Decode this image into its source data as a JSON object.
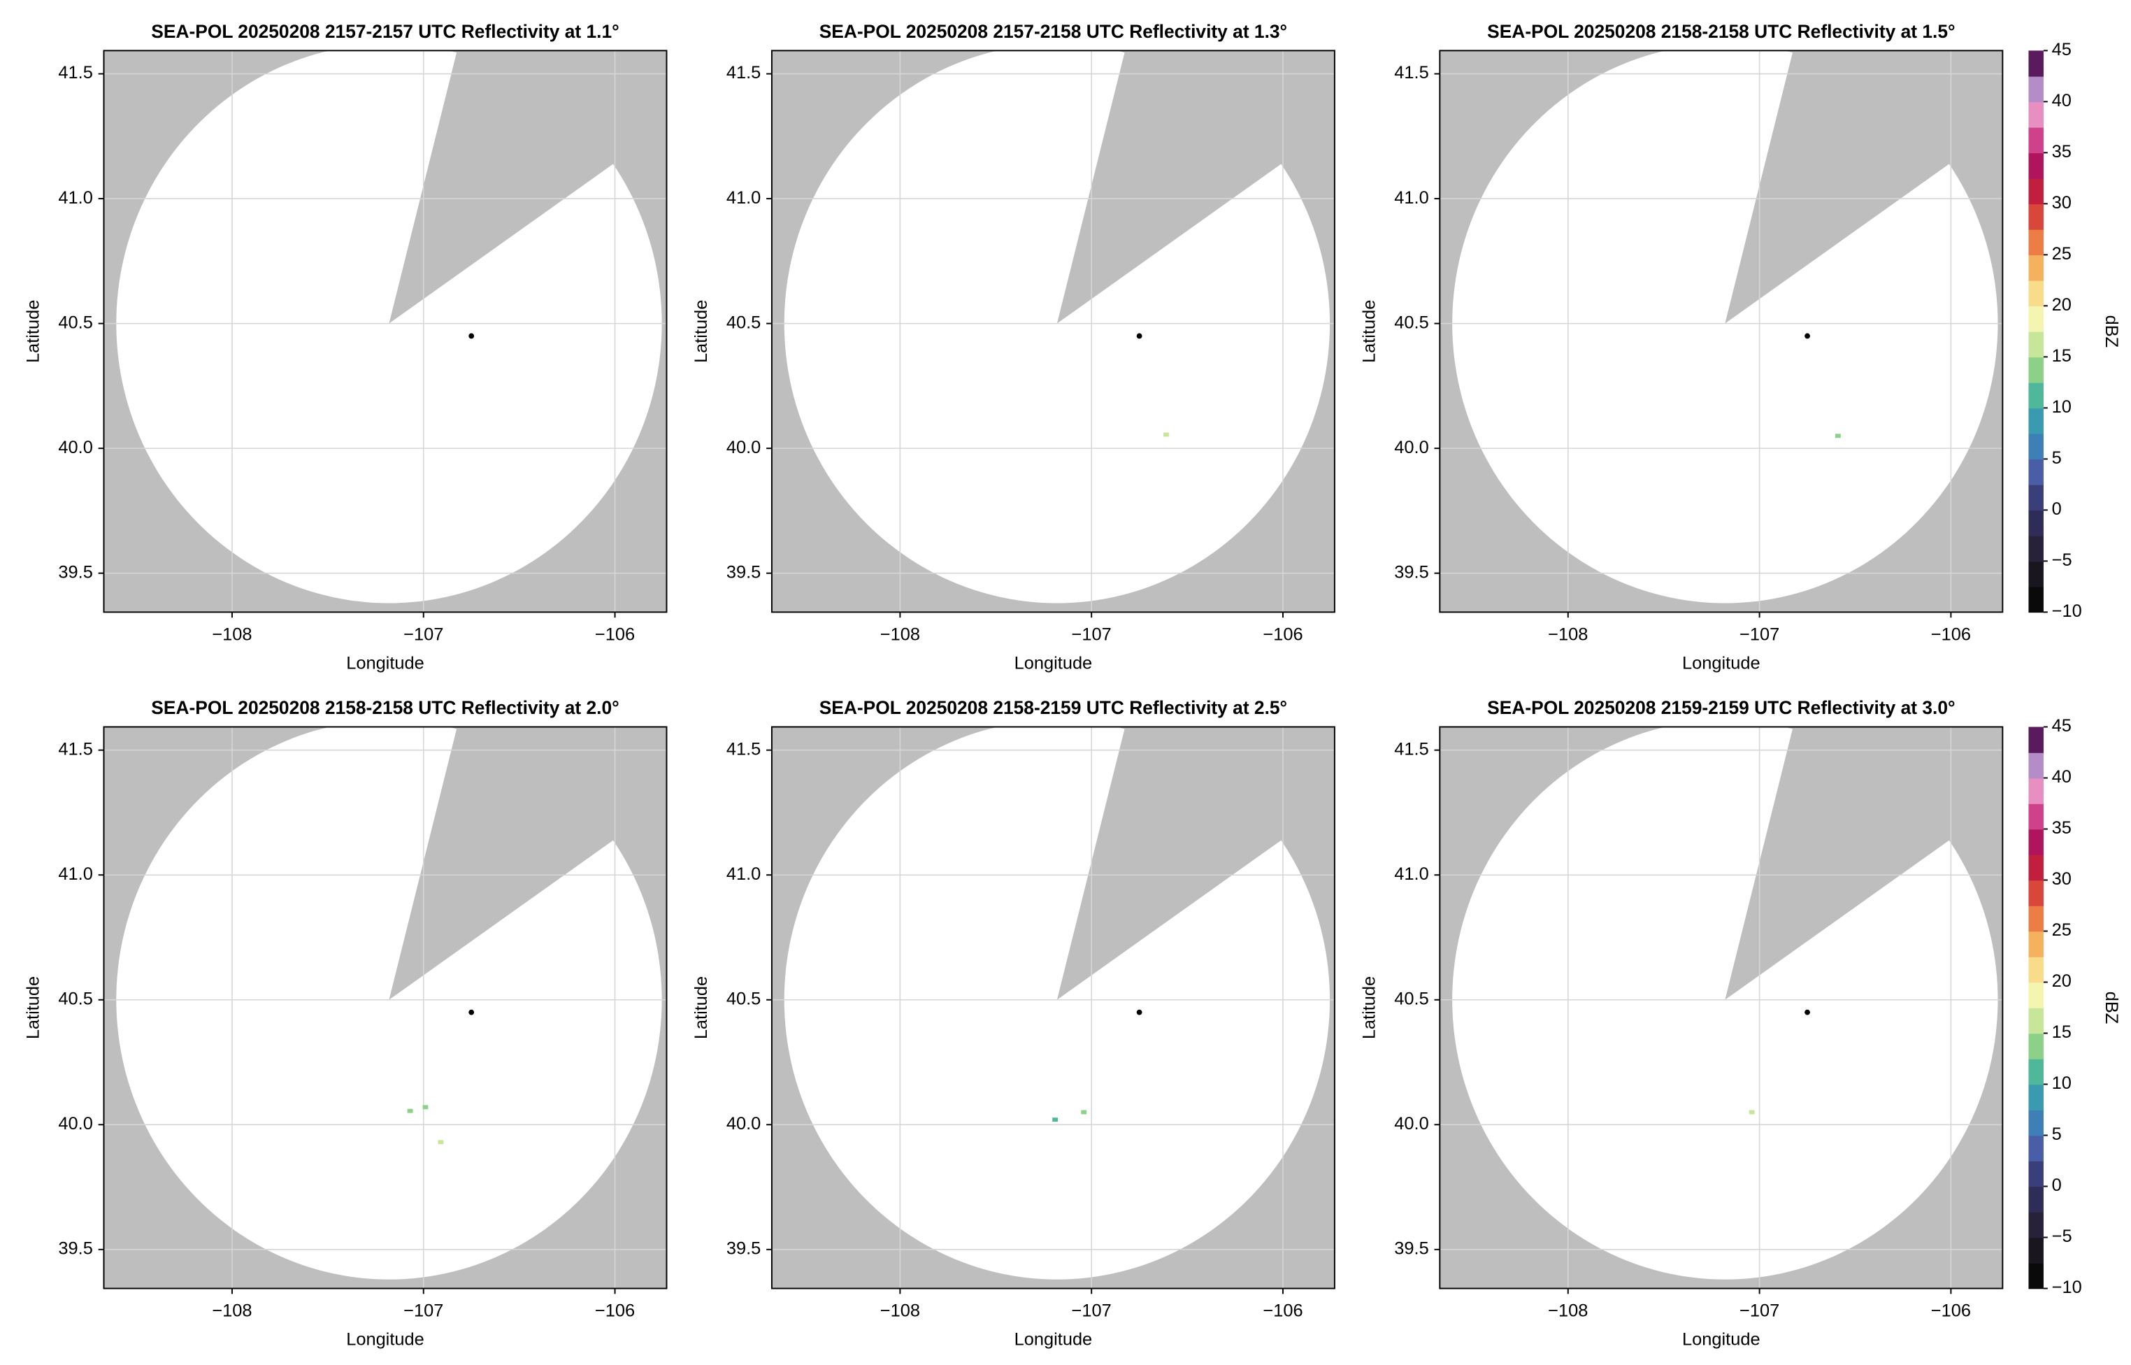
{
  "chart_data": [
    {
      "type": "radar_ppi",
      "title": "SEA-POL 20250208 2157-2157 UTC Reflectivity at 1.1°",
      "xlabel": "Longitude",
      "ylabel": "Latitude",
      "xlim": [
        -108.67,
        -105.73
      ],
      "ylim": [
        39.344,
        41.593
      ],
      "xticks": [
        {
          "value": -108,
          "label": "−108"
        },
        {
          "value": -107,
          "label": "−107"
        },
        {
          "value": -106,
          "label": "−106"
        }
      ],
      "yticks": [
        39.5,
        {
          "value": 40,
          "label": "40.0"
        },
        40.5,
        {
          "value": 41,
          "label": "41.0"
        },
        41.5
      ],
      "grid": true,
      "coverage": {
        "center": [
          -107.18,
          40.5
        ],
        "radius": [
          1.425,
          1.12
        ],
        "blocked_edges": [
          [
            -106.843,
            41.536
          ],
          [
            -106.064,
            41.109
          ]
        ],
        "color": "#bebebe"
      },
      "site": [
        -106.75,
        40.45
      ],
      "echoes": {
        "x": [],
        "y": [],
        "values": []
      },
      "colorbar": false
    },
    {
      "type": "radar_ppi",
      "title": "SEA-POL 20250208 2157-2158 UTC Reflectivity at 1.3°",
      "xlabel": "Longitude",
      "ylabel": "Latitude",
      "xlim": [
        -108.67,
        -105.73
      ],
      "ylim": [
        39.344,
        41.593
      ],
      "xticks": [
        {
          "value": -108,
          "label": "−108"
        },
        {
          "value": -107,
          "label": "−107"
        },
        {
          "value": -106,
          "label": "−106"
        }
      ],
      "yticks": [
        39.5,
        {
          "value": 40,
          "label": "40.0"
        },
        40.5,
        {
          "value": 41,
          "label": "41.0"
        },
        41.5
      ],
      "grid": true,
      "coverage": {
        "center": [
          -107.18,
          40.5
        ],
        "radius": [
          1.425,
          1.12
        ],
        "blocked_edges": [
          [
            -106.843,
            41.536
          ],
          [
            -106.064,
            41.109
          ]
        ],
        "color": "#bebebe"
      },
      "site": [
        -106.75,
        40.45
      ],
      "echoes": {
        "x": [
          -106.61
        ],
        "y": [
          40.055
        ],
        "values": [
          17
        ]
      },
      "colorbar": false
    },
    {
      "type": "radar_ppi",
      "title": "SEA-POL 20250208 2158-2158 UTC Reflectivity at 1.5°",
      "xlabel": "Longitude",
      "ylabel": "Latitude",
      "xlim": [
        -108.67,
        -105.73
      ],
      "ylim": [
        39.344,
        41.593
      ],
      "xticks": [
        {
          "value": -108,
          "label": "−108"
        },
        {
          "value": -107,
          "label": "−107"
        },
        {
          "value": -106,
          "label": "−106"
        }
      ],
      "yticks": [
        39.5,
        {
          "value": 40,
          "label": "40.0"
        },
        40.5,
        {
          "value": 41,
          "label": "41.0"
        },
        41.5
      ],
      "grid": true,
      "coverage": {
        "center": [
          -107.18,
          40.5
        ],
        "radius": [
          1.425,
          1.12
        ],
        "blocked_edges": [
          [
            -106.843,
            41.536
          ],
          [
            -106.064,
            41.109
          ]
        ],
        "color": "#bebebe"
      },
      "site": [
        -106.75,
        40.45
      ],
      "echoes": {
        "x": [
          -106.59
        ],
        "y": [
          40.05
        ],
        "values": [
          14
        ]
      },
      "colorbar": true
    },
    {
      "type": "radar_ppi",
      "title": "SEA-POL 20250208 2158-2158 UTC Reflectivity at 2.0°",
      "xlabel": "Longitude",
      "ylabel": "Latitude",
      "xlim": [
        -108.67,
        -105.73
      ],
      "ylim": [
        39.344,
        41.593
      ],
      "xticks": [
        {
          "value": -108,
          "label": "−108"
        },
        {
          "value": -107,
          "label": "−107"
        },
        {
          "value": -106,
          "label": "−106"
        }
      ],
      "yticks": [
        39.5,
        {
          "value": 40,
          "label": "40.0"
        },
        40.5,
        {
          "value": 41,
          "label": "41.0"
        },
        41.5
      ],
      "grid": true,
      "coverage": {
        "center": [
          -107.18,
          40.5
        ],
        "radius": [
          1.425,
          1.12
        ],
        "blocked_edges": [
          [
            -106.843,
            41.536
          ],
          [
            -106.064,
            41.109
          ]
        ],
        "color": "#bebebe"
      },
      "site": [
        -106.75,
        40.45
      ],
      "echoes": {
        "x": [
          -107.07,
          -106.99,
          -106.91
        ],
        "y": [
          40.055,
          40.07,
          39.93
        ],
        "values": [
          14,
          13,
          15
        ]
      },
      "colorbar": false
    },
    {
      "type": "radar_ppi",
      "title": "SEA-POL 20250208 2158-2159 UTC Reflectivity at 2.5°",
      "xlabel": "Longitude",
      "ylabel": "Latitude",
      "xlim": [
        -108.67,
        -105.73
      ],
      "ylim": [
        39.344,
        41.593
      ],
      "xticks": [
        {
          "value": -108,
          "label": "−108"
        },
        {
          "value": -107,
          "label": "−107"
        },
        {
          "value": -106,
          "label": "−106"
        }
      ],
      "yticks": [
        39.5,
        {
          "value": 40,
          "label": "40.0"
        },
        40.5,
        {
          "value": 41,
          "label": "41.0"
        },
        41.5
      ],
      "grid": true,
      "coverage": {
        "center": [
          -107.18,
          40.5
        ],
        "radius": [
          1.425,
          1.12
        ],
        "blocked_edges": [
          [
            -106.843,
            41.536
          ],
          [
            -106.064,
            41.109
          ]
        ],
        "color": "#bebebe"
      },
      "site": [
        -106.75,
        40.45
      ],
      "echoes": {
        "x": [
          -107.19,
          -107.04
        ],
        "y": [
          40.02,
          40.05
        ],
        "values": [
          12,
          14
        ]
      },
      "colorbar": false
    },
    {
      "type": "radar_ppi",
      "title": "SEA-POL 20250208 2159-2159 UTC Reflectivity at 3.0°",
      "xlabel": "Longitude",
      "ylabel": "Latitude",
      "xlim": [
        -108.67,
        -105.73
      ],
      "ylim": [
        39.344,
        41.593
      ],
      "xticks": [
        {
          "value": -108,
          "label": "−108"
        },
        {
          "value": -107,
          "label": "−107"
        },
        {
          "value": -106,
          "label": "−106"
        }
      ],
      "yticks": [
        39.5,
        {
          "value": 40,
          "label": "40.0"
        },
        40.5,
        {
          "value": 41,
          "label": "41.0"
        },
        41.5
      ],
      "grid": true,
      "coverage": {
        "center": [
          -107.18,
          40.5
        ],
        "radius": [
          1.425,
          1.12
        ],
        "blocked_edges": [
          [
            -106.843,
            41.536
          ],
          [
            -106.064,
            41.109
          ]
        ],
        "color": "#bebebe"
      },
      "site": [
        -106.75,
        40.45
      ],
      "echoes": {
        "x": [
          -107.04
        ],
        "y": [
          40.05
        ],
        "values": [
          17
        ]
      },
      "colorbar": true
    }
  ],
  "colorbar": {
    "label": "dBZ",
    "lim": [
      -10,
      45
    ],
    "step": 2.5,
    "ticks": [
      {
        "value": -10,
        "label": "−10"
      },
      {
        "value": -5,
        "label": "−5"
      },
      0,
      5,
      10,
      15,
      20,
      25,
      30,
      35,
      40,
      45
    ],
    "colors": [
      "#0a0a0a",
      "#1a1620",
      "#27223a",
      "#2f2c58",
      "#3a3f7a",
      "#4a5ea8",
      "#3f7fb8",
      "#3a9ab0",
      "#4fb79a",
      "#8cd18a",
      "#c8e69a",
      "#f3f5b0",
      "#f8dc8a",
      "#f5b25e",
      "#ec7d44",
      "#d9463a",
      "#c21f3e",
      "#b0145c",
      "#d0418c",
      "#e68fc0",
      "#b48cc8",
      "#5a1a5e"
    ]
  }
}
